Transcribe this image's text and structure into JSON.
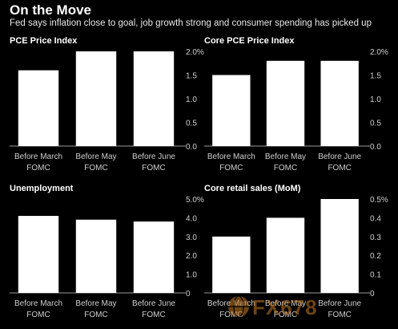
{
  "header": {
    "title": "On the Move",
    "subtitle": "Fed says inflation close to goal, job growth strong and consumer spending has picked up"
  },
  "colors": {
    "background": "#000000",
    "bar": "#ffffff",
    "text": "#ffffff",
    "tick": "#cfcfcf"
  },
  "watermark": {
    "text": "FX678"
  },
  "chart_data": [
    {
      "type": "bar",
      "title": "PCE Price Index",
      "categories": [
        [
          "Before March",
          "FOMC"
        ],
        [
          "Before May",
          "FOMC"
        ],
        [
          "Before June",
          "FOMC"
        ]
      ],
      "values": [
        1.6,
        2.0,
        2.0
      ],
      "ylim": [
        0,
        2.0
      ],
      "yticks": [
        0.0,
        0.5,
        1.0,
        1.5,
        2.0
      ],
      "ytick_labels": [
        "0.0",
        "0.5",
        "1.0",
        "1.5",
        "2.0%"
      ],
      "axis_position": "right",
      "grid": false
    },
    {
      "type": "bar",
      "title": "Core PCE Price Index",
      "categories": [
        [
          "Before March",
          "FOMC"
        ],
        [
          "Before May",
          "FOMC"
        ],
        [
          "Before June",
          "FOMC"
        ]
      ],
      "values": [
        1.5,
        1.8,
        1.8
      ],
      "ylim": [
        0,
        2.0
      ],
      "yticks": [
        0.0,
        0.5,
        1.0,
        1.5,
        2.0
      ],
      "ytick_labels": [
        "0.0",
        "0.5",
        "1.0",
        "1.5",
        "2.0%"
      ],
      "axis_position": "right",
      "grid": false
    },
    {
      "type": "bar",
      "title": "Unemployment",
      "categories": [
        [
          "Before March",
          "FOMC"
        ],
        [
          "Before May",
          "FOMC"
        ],
        [
          "Before June",
          "FOMC"
        ]
      ],
      "values": [
        4.1,
        3.9,
        3.8
      ],
      "ylim": [
        0,
        5.0
      ],
      "yticks": [
        0,
        1,
        2,
        3,
        4,
        5
      ],
      "ytick_labels": [
        "0",
        "1.0",
        "2.0",
        "3.0",
        "4.0",
        "5.0%"
      ],
      "axis_position": "right",
      "grid": false
    },
    {
      "type": "bar",
      "title": "Core retail sales (MoM)",
      "categories": [
        [
          "Before March",
          "FOMC"
        ],
        [
          "Before May",
          "FOMC"
        ],
        [
          "Before June",
          "FOMC"
        ]
      ],
      "values": [
        0.3,
        0.4,
        0.5
      ],
      "ylim": [
        0,
        0.5
      ],
      "yticks": [
        0,
        0.1,
        0.2,
        0.3,
        0.4,
        0.5
      ],
      "ytick_labels": [
        "0",
        "0.1",
        "0.2",
        "0.3",
        "0.4",
        "0.5%"
      ],
      "axis_position": "right",
      "grid": false
    }
  ]
}
